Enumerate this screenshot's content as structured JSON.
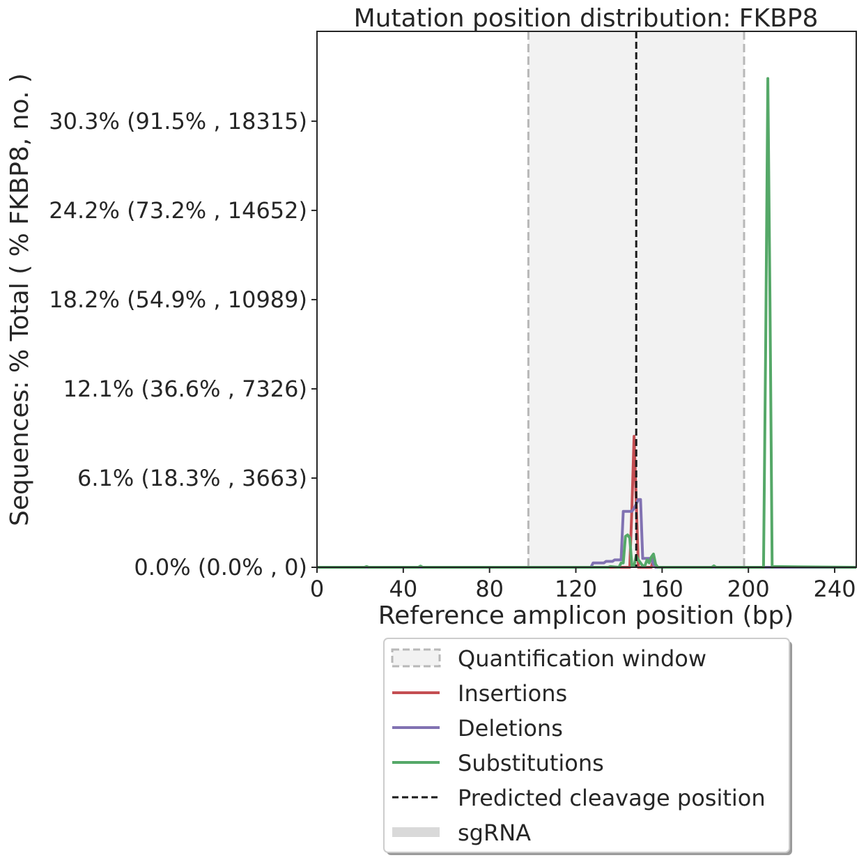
{
  "chart_data": {
    "type": "line",
    "title": "Mutation position distribution: FKBP8",
    "xlabel": "Reference amplicon position (bp)",
    "ylabel": "Sequences: % Total ( % FKBP8, no. )",
    "xlim": [
      0,
      250
    ],
    "ylim": [
      0,
      36.4
    ],
    "x_ticks": [
      0,
      40,
      80,
      120,
      160,
      200,
      240
    ],
    "y_ticks": [
      {
        "value": 0.0,
        "label": "0.0% (0.0% , 0)"
      },
      {
        "value": 6.06,
        "label": "6.1% (18.3% , 3663)"
      },
      {
        "value": 12.12,
        "label": "12.1% (36.6% , 7326)"
      },
      {
        "value": 18.18,
        "label": "18.2% (54.9% , 10989)"
      },
      {
        "value": 24.24,
        "label": "24.2% (73.2% , 14652)"
      },
      {
        "value": 30.3,
        "label": "30.3% (91.5% , 18315)"
      }
    ],
    "quantification_window": [
      98,
      198
    ],
    "cleavage_position": 148,
    "grid": false,
    "legend_placement": "below",
    "legend": [
      {
        "label": "Quantification window",
        "kind": "patch-dashed",
        "color": "#f2f2f2"
      },
      {
        "label": "Insertions",
        "kind": "line",
        "color": "#c44e52"
      },
      {
        "label": "Deletions",
        "kind": "line",
        "color": "#8172b2"
      },
      {
        "label": "Substitutions",
        "kind": "line",
        "color": "#55a868"
      },
      {
        "label": "Predicted cleavage position",
        "kind": "dashed",
        "color": "#1a1a1a"
      },
      {
        "label": "sgRNA",
        "kind": "band",
        "color": "#d9d9d9"
      }
    ],
    "series": [
      {
        "name": "Insertions",
        "color": "#c44e52",
        "x": [
          0,
          145,
          146,
          147,
          148,
          149,
          150,
          155,
          156,
          157,
          158,
          250
        ],
        "y": [
          0,
          0,
          4.0,
          8.9,
          4.5,
          0,
          0,
          0,
          0.6,
          0,
          0,
          0
        ]
      },
      {
        "name": "Deletions",
        "color": "#8172b2",
        "x": [
          0,
          127,
          128,
          133,
          134,
          137,
          138,
          141,
          142,
          146,
          147,
          148,
          149,
          150,
          151,
          155,
          156,
          157,
          250
        ],
        "y": [
          0,
          0,
          0.3,
          0.3,
          0.4,
          0.4,
          0.5,
          0.5,
          3.8,
          3.8,
          4.0,
          4.3,
          4.6,
          4.6,
          0.6,
          0.6,
          0.2,
          0,
          0
        ]
      },
      {
        "name": "Substitutions",
        "color": "#55a868",
        "x": [
          0,
          22,
          23,
          24,
          47,
          48,
          49,
          135,
          136,
          140,
          141,
          142,
          143,
          144,
          145,
          146,
          147,
          148,
          149,
          150,
          151,
          152,
          153,
          154,
          155,
          156,
          157,
          158,
          183,
          184,
          185,
          206,
          207,
          208,
          209,
          210,
          211,
          212,
          250
        ],
        "y": [
          0,
          0,
          0.05,
          0,
          0,
          0.08,
          0,
          0,
          0.05,
          0,
          0.3,
          0.3,
          2.1,
          2.2,
          2.0,
          0.1,
          0.1,
          0.8,
          0.5,
          0.3,
          0.1,
          0.1,
          0.5,
          0.3,
          0.7,
          0.9,
          0.2,
          0,
          0,
          0.1,
          0,
          0,
          0,
          15.0,
          33.2,
          18.0,
          0,
          0.05,
          0
        ]
      }
    ]
  }
}
